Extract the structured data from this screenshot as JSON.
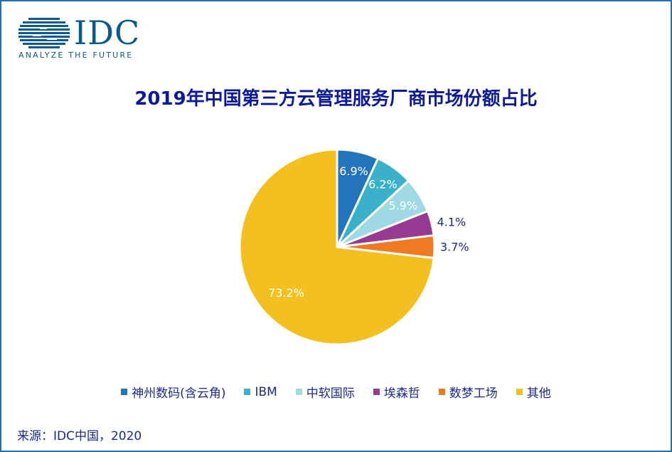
{
  "logo": {
    "word": "IDC",
    "tagline": "ANALYZE THE FUTURE"
  },
  "title": "2019年中国第三方云管理服务厂商市场份额占比",
  "chart_data": {
    "type": "pie",
    "title": "2019年中国第三方云管理服务厂商市场份额占比",
    "unit": "%",
    "start": "12 o'clock",
    "direction": "clockwise",
    "slices": [
      {
        "label": "神州数码(含云角)",
        "value": 6.9,
        "value_label": "6.9%",
        "color": "#2474bb",
        "label_inside": true
      },
      {
        "label": "IBM",
        "value": 6.2,
        "value_label": "6.2%",
        "color": "#3ab0cb",
        "label_inside": true
      },
      {
        "label": "中软国际",
        "value": 5.9,
        "value_label": "5.9%",
        "color": "#9ed9e4",
        "label_inside": true
      },
      {
        "label": "埃森哲",
        "value": 4.1,
        "value_label": "4.1%",
        "color": "#963a92",
        "label_inside": false
      },
      {
        "label": "数梦工场",
        "value": 3.7,
        "value_label": "3.7%",
        "color": "#ef7a21",
        "label_inside": false
      },
      {
        "label": "其他",
        "value": 73.2,
        "value_label": "73.2%",
        "color": "#f4c020",
        "label_inside": true
      }
    ],
    "legend_position": "bottom"
  },
  "source": "来源：IDC中国，2020"
}
